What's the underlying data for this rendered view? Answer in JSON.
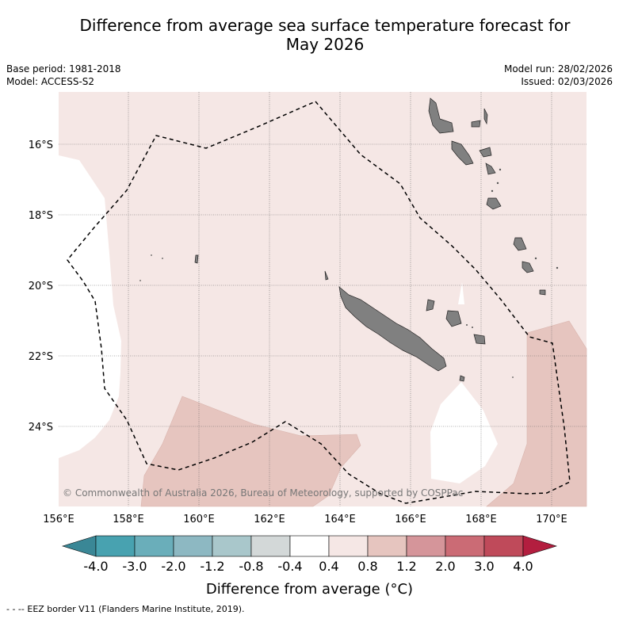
{
  "title": {
    "line1": "Difference from average sea surface temperature forecast for",
    "line2": "May 2026"
  },
  "meta": {
    "base_period": "Base period: 1981-2018",
    "model": "Model: ACCESS-S2",
    "model_run": "Model run: 28/02/2026",
    "issued": "Issued: 02/03/2026"
  },
  "map": {
    "lat_labels": [
      "16°S",
      "18°S",
      "20°S",
      "22°S",
      "24°S"
    ],
    "lon_labels": [
      "156°E",
      "158°E",
      "160°E",
      "162°E",
      "164°E",
      "166°E",
      "168°E",
      "170°E"
    ],
    "copyright": "© Commonwealth of Australia 2026, Bureau of Meteorology, supported by COSPPac"
  },
  "colorbar": {
    "ticks": [
      "-4.0",
      "-3.0",
      "-2.0",
      "-1.2",
      "-0.8",
      "-0.4",
      "0.4",
      "0.8",
      "1.2",
      "2.0",
      "3.0",
      "4.0"
    ],
    "colors": [
      "#3a8796",
      "#48a2b0",
      "#6aaeba",
      "#8db8c2",
      "#a9c7cb",
      "#d3d8d8",
      "#ffffff",
      "#f5e7e5",
      "#e6c5bf",
      "#d5959a",
      "#cb6b75",
      "#bf4a5a",
      "#b31e3f"
    ],
    "label": "Difference from average (°C)"
  },
  "legend": {
    "eez": "- -  -- EEZ border V11 (Flanders Marine Institute, 2019)."
  }
}
